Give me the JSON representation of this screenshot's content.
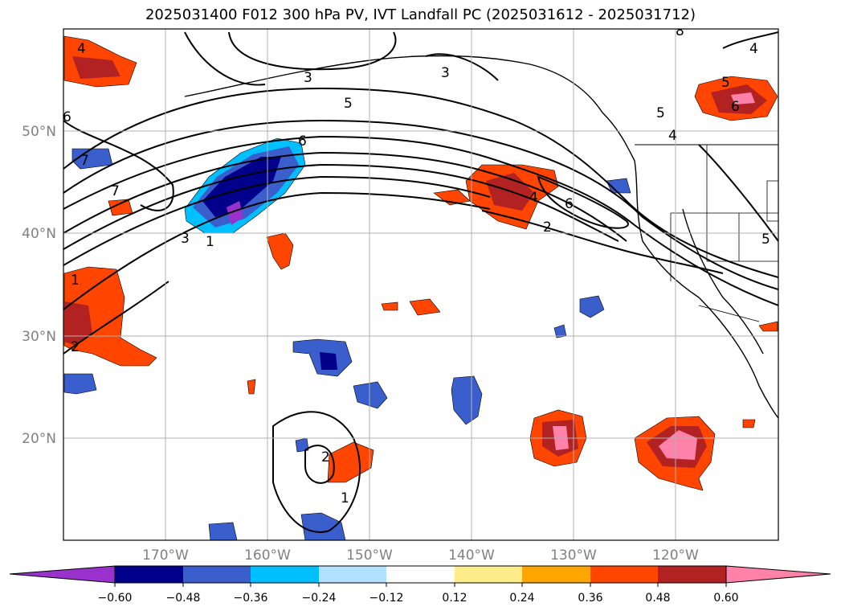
{
  "title": "2025031400 F012 300 hPa PV, IVT Landfall PC (2025031612 - 2025031712)",
  "map": {
    "lon_range": [
      -180,
      -110
    ],
    "lat_range": [
      10,
      60
    ],
    "lon_ticks": [
      {
        "value": -170,
        "label": "170°W"
      },
      {
        "value": -160,
        "label": "160°W"
      },
      {
        "value": -150,
        "label": "150°W"
      },
      {
        "value": -140,
        "label": "140°W"
      },
      {
        "value": -130,
        "label": "130°W"
      },
      {
        "value": -120,
        "label": "120°W"
      }
    ],
    "lat_ticks": [
      {
        "value": 20,
        "label": "20°N"
      },
      {
        "value": 30,
        "label": "30°N"
      },
      {
        "value": 40,
        "label": "40°N"
      },
      {
        "value": 50,
        "label": "50°N"
      }
    ],
    "grid": true,
    "contour_labels": [
      "4",
      "3",
      "3",
      "5",
      "6",
      "6",
      "7",
      "7",
      "3",
      "1",
      "4",
      "6",
      "2",
      "1",
      "2",
      "2",
      "1",
      "5",
      "6",
      "5",
      "4",
      "5",
      "8",
      "4"
    ]
  },
  "colorbar": {
    "levels": [
      "−0.60",
      "−0.48",
      "−0.36",
      "−0.24",
      "−0.12",
      "0.12",
      "0.24",
      "0.36",
      "0.48",
      "0.60"
    ],
    "colors": [
      "#9932cc",
      "#00008b",
      "#3a5fcd",
      "#00bfff",
      "#b0e2ff",
      "#ffffff",
      "#ffec8b",
      "#ffa500",
      "#ff4500",
      "#b22222",
      "#ff82ab"
    ],
    "extend": "both"
  }
}
